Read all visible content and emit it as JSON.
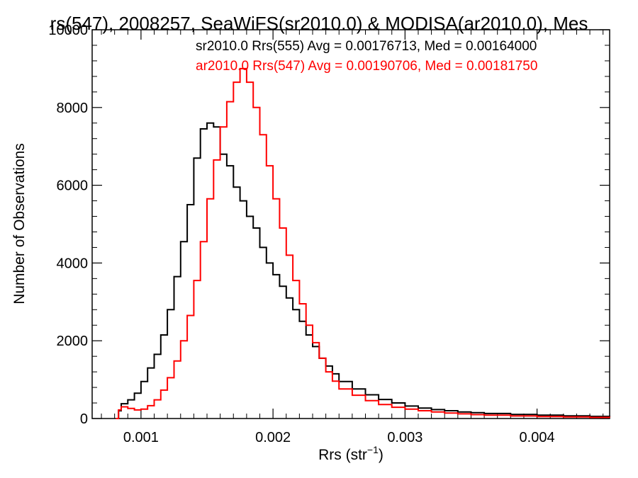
{
  "chart_data": {
    "type": "line",
    "title": "rs(547), 2008257, SeaWiFS(sr2010.0) & MODISA(ar2010.0), Mes",
    "xlabel_main": "Rrs (str",
    "xlabel_sup": "−1",
    "xlabel_close": ")",
    "ylabel": "Number of Observations",
    "xlim": [
      0.00063,
      0.00455
    ],
    "ylim": [
      0,
      10000
    ],
    "x_ticks": [
      0.001,
      0.002,
      0.003,
      0.004
    ],
    "x_tick_labels": [
      "0.001",
      "0.002",
      "0.003",
      "0.004"
    ],
    "y_ticks": [
      0,
      2000,
      4000,
      6000,
      8000,
      10000
    ],
    "y_tick_labels": [
      "0",
      "2000",
      "4000",
      "6000",
      "8000",
      "10000"
    ],
    "grid": false,
    "legend_position": "top-right",
    "series": [
      {
        "name": "sr2010.0 Rrs(555) Avg = 0.00176713, Med = 0.00164000",
        "color": "#000000",
        "x": [
          0.00081,
          0.00083,
          0.00085,
          0.0009,
          0.00095,
          0.001,
          0.00105,
          0.0011,
          0.00115,
          0.0012,
          0.00125,
          0.0013,
          0.00135,
          0.0014,
          0.00145,
          0.0015,
          0.00155,
          0.0016,
          0.00165,
          0.0017,
          0.00175,
          0.0018,
          0.00185,
          0.0019,
          0.00195,
          0.002,
          0.00205,
          0.0021,
          0.00215,
          0.0022,
          0.00225,
          0.0023,
          0.00235,
          0.0024,
          0.00245,
          0.0025,
          0.0026,
          0.0027,
          0.0028,
          0.0029,
          0.003,
          0.0031,
          0.0032,
          0.0033,
          0.0034,
          0.0035,
          0.0036,
          0.0038,
          0.004,
          0.0042,
          0.0044,
          0.00455
        ],
        "y": [
          0,
          200,
          380,
          480,
          650,
          950,
          1300,
          1650,
          2150,
          2800,
          3650,
          4550,
          5500,
          6700,
          7450,
          7600,
          7500,
          6800,
          6500,
          5950,
          5600,
          5200,
          4900,
          4400,
          4000,
          3700,
          3400,
          3100,
          2800,
          2500,
          2150,
          1850,
          1550,
          1350,
          1150,
          950,
          760,
          610,
          490,
          400,
          320,
          270,
          230,
          200,
          170,
          150,
          130,
          105,
          85,
          70,
          55,
          40
        ]
      },
      {
        "name": "ar2010.0 Rrs(547) Avg = 0.00190706, Med = 0.00181750",
        "color": "#ff0000",
        "x": [
          0.00081,
          0.00083,
          0.00085,
          0.0009,
          0.00095,
          0.001,
          0.00105,
          0.0011,
          0.00115,
          0.0012,
          0.00125,
          0.0013,
          0.00135,
          0.0014,
          0.00145,
          0.0015,
          0.00155,
          0.0016,
          0.00165,
          0.0017,
          0.00175,
          0.0018,
          0.00185,
          0.0019,
          0.00195,
          0.002,
          0.00205,
          0.0021,
          0.00215,
          0.0022,
          0.00225,
          0.0023,
          0.00235,
          0.0024,
          0.00245,
          0.0025,
          0.0026,
          0.0027,
          0.0028,
          0.0029,
          0.003,
          0.0031,
          0.0032,
          0.0033,
          0.0034,
          0.0035,
          0.0036,
          0.0038,
          0.004,
          0.0042,
          0.0044,
          0.00455
        ],
        "y": [
          0,
          220,
          300,
          260,
          220,
          240,
          330,
          480,
          730,
          1050,
          1480,
          2000,
          2650,
          3550,
          4550,
          5650,
          6650,
          7500,
          8150,
          8650,
          9000,
          8650,
          8000,
          7300,
          6500,
          5650,
          4900,
          4200,
          3550,
          2950,
          2400,
          1950,
          1550,
          1200,
          960,
          760,
          600,
          460,
          360,
          290,
          240,
          200,
          170,
          140,
          120,
          100,
          85,
          65,
          50,
          40,
          30,
          25
        ]
      }
    ]
  }
}
